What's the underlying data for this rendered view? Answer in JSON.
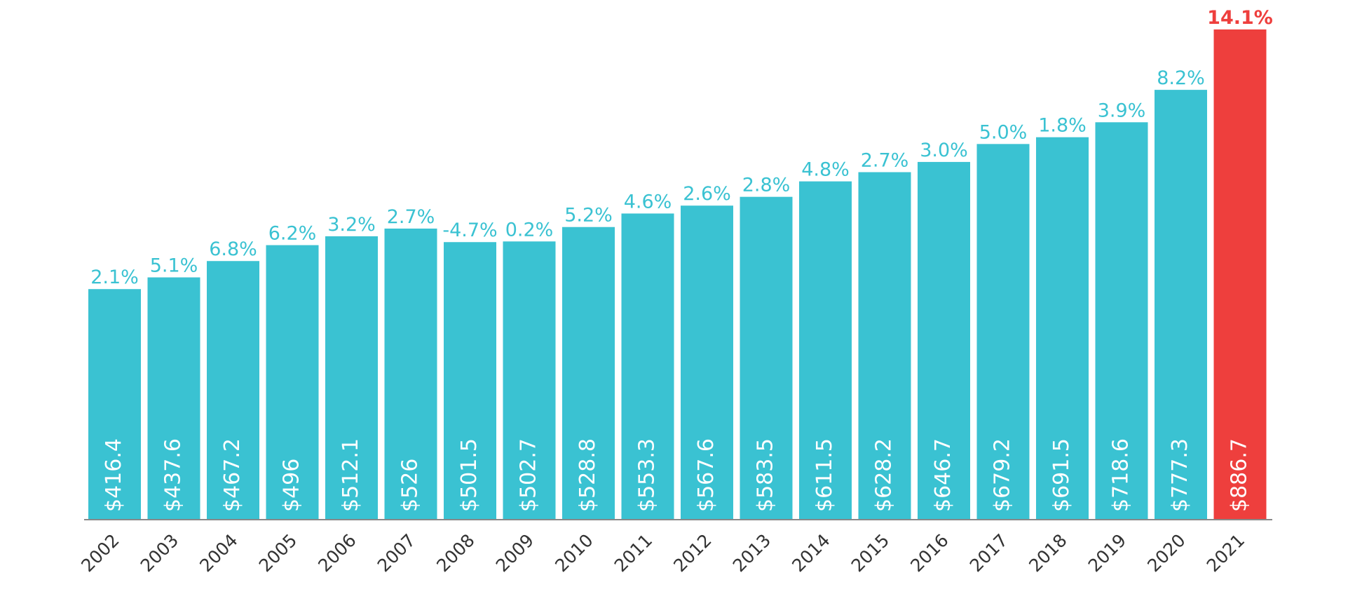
{
  "chart_data": {
    "type": "bar",
    "title": "",
    "xlabel": "",
    "ylabel": "",
    "ylim": [
      0,
      930
    ],
    "grid": false,
    "legend": "none",
    "categories": [
      "2002",
      "2003",
      "2004",
      "2005",
      "2006",
      "2007",
      "2008",
      "2009",
      "2010",
      "2011",
      "2012",
      "2013",
      "2014",
      "2015",
      "2016",
      "2017",
      "2018",
      "2019",
      "2020",
      "2021"
    ],
    "values": [
      416.4,
      437.6,
      467.2,
      496,
      512.1,
      526,
      501.5,
      502.7,
      528.8,
      553.3,
      567.6,
      583.5,
      611.5,
      628.2,
      646.7,
      679.2,
      691.5,
      718.6,
      777.3,
      886.7
    ],
    "value_labels": [
      "$416.4",
      "$437.6",
      "$467.2",
      "$496",
      "$512.1",
      "$526",
      "$501.5",
      "$502.7",
      "$528.8",
      "$553.3",
      "$567.6",
      "$583.5",
      "$611.5",
      "$628.2",
      "$646.7",
      "$679.2",
      "$691.5",
      "$718.6",
      "$777.3",
      "$886.7"
    ],
    "growth_labels": [
      "2.1%",
      "5.1%",
      "6.8%",
      "6.2%",
      "3.2%",
      "2.7%",
      "-4.7%",
      "0.2%",
      "5.2%",
      "4.6%",
      "2.6%",
      "2.8%",
      "4.8%",
      "2.7%",
      "3.0%",
      "5.0%",
      "1.8%",
      "3.9%",
      "8.2%",
      "14.1%"
    ],
    "highlight_category": "2021",
    "colors": {
      "bar": "#3ac2d2",
      "highlight": "#ee3f3d",
      "axis": "#888888"
    }
  }
}
